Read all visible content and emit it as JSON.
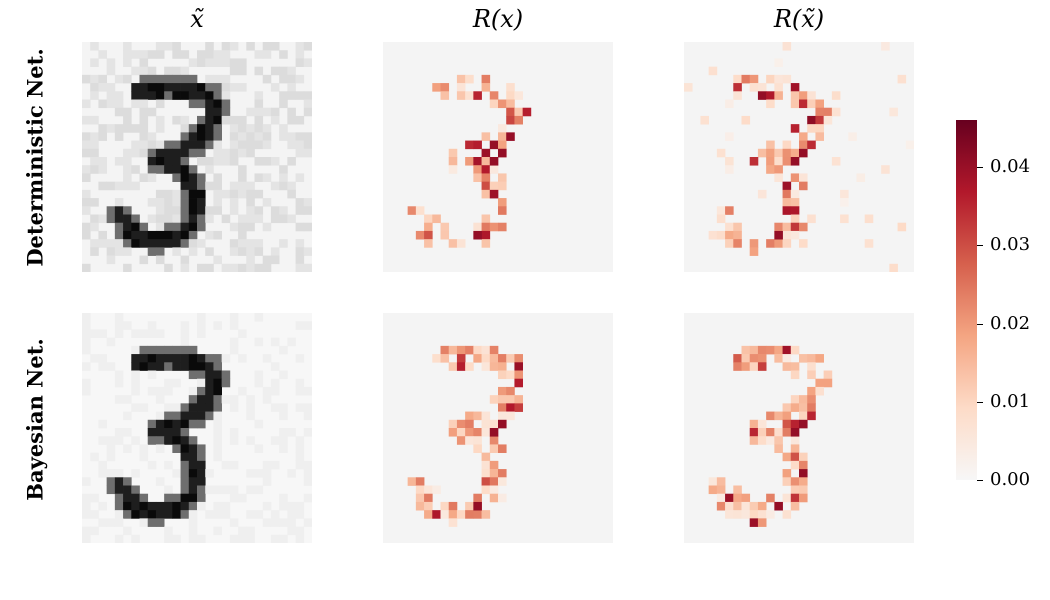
{
  "chart_data": [
    {
      "type": "heatmap",
      "column_titles": [
        "x̃",
        "R(x)",
        "R(x̃)"
      ],
      "row_titles": [
        "Deterministic Net.",
        "Bayesian Net."
      ],
      "panels": [
        {
          "row": "Deterministic Net.",
          "column": "x̃",
          "content": "noisy digit image"
        },
        {
          "row": "Deterministic Net.",
          "column": "R(x)",
          "content": "relevance heatmap"
        },
        {
          "row": "Deterministic Net.",
          "column": "R(x̃)",
          "content": "relevance heatmap"
        },
        {
          "row": "Bayesian Net.",
          "column": "x̃",
          "content": "digit image"
        },
        {
          "row": "Bayesian Net.",
          "column": "R(x)",
          "content": "relevance heatmap"
        },
        {
          "row": "Bayesian Net.",
          "column": "R(x̃)",
          "content": "relevance heatmap"
        }
      ],
      "colorbar": {
        "colormap": "Reds",
        "range": [
          0.0,
          0.046
        ],
        "ticks": [
          "0.00",
          "0.01",
          "0.02",
          "0.03",
          "0.04"
        ],
        "tick_values": [
          0.0,
          0.01,
          0.02,
          0.03,
          0.04
        ]
      }
    }
  ]
}
